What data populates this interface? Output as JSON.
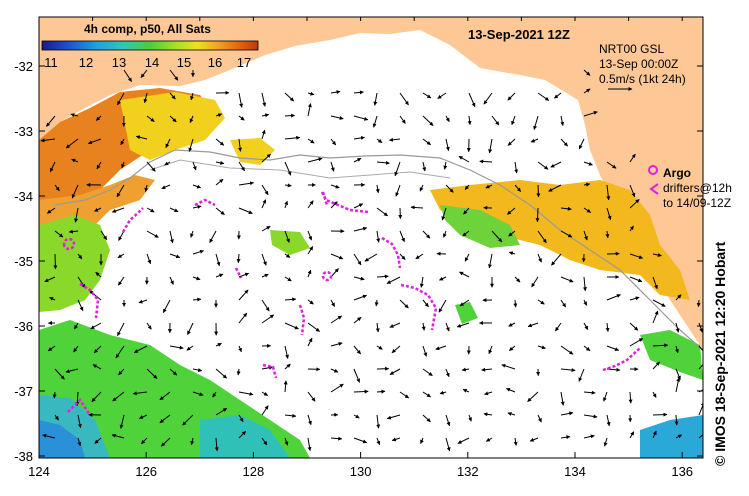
{
  "colorbar": {
    "title": "4h comp, p50, All Sats",
    "ticks": [
      "11",
      "12",
      "13",
      "14",
      "15",
      "16",
      "17"
    ],
    "colors": [
      "#1a1a8c",
      "#1f4fd1",
      "#1f9fe0",
      "#2fc9b0",
      "#4ccd3c",
      "#a8e025",
      "#f0e020",
      "#f0a020",
      "#e06010",
      "#b83a10"
    ]
  },
  "map_title": "13-Sep-2021 12Z",
  "current_reference": {
    "lines": [
      "NRT00 GSL",
      "13-Sep 00:00Z",
      "0.5m/s (1kt 24h)"
    ],
    "arrow": "right-arrow"
  },
  "argo_legend": {
    "title": "Argo",
    "lines": [
      "drifters@12h",
      "to 14/09-12Z"
    ],
    "color": "#e020e0"
  },
  "axes": {
    "x_ticks": [
      "124",
      "126",
      "128",
      "130",
      "132",
      "134",
      "136"
    ],
    "y_ticks": [
      "-32",
      "-33",
      "-34",
      "-35",
      "-36",
      "-37",
      "-38"
    ]
  },
  "credit": "© IMOS 18-Sep-2021 12:20 Hobart",
  "colors": {
    "land": "#fdc896",
    "warm_sst": "#e8821e",
    "mid_sst": "#f2b81e",
    "cool_sst": "#4fd23a",
    "cold_sst": "#2aa8d8",
    "argo": "#e020e0"
  }
}
